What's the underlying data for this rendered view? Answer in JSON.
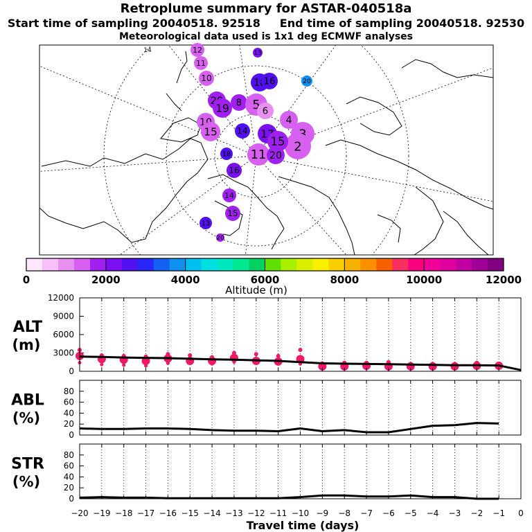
{
  "header": {
    "title": "Retroplume summary for ASTAR-040518a",
    "start_label": "Start time of sampling",
    "start_value": "20040518. 92518",
    "end_label": "End time of sampling",
    "end_value": "20040518. 92530",
    "met_line": "Meteorological data used is 1x1 deg ECMWF analyses"
  },
  "colorbar": {
    "label": "Altitude (m)",
    "ticks": [
      "0",
      "2000",
      "4000",
      "6000",
      "8000",
      "10000",
      "12000"
    ],
    "colors": [
      "#ffe8ff",
      "#f8c0f8",
      "#e890f0",
      "#d860f0",
      "#a020f0",
      "#7a10f0",
      "#5010f0",
      "#2828f8",
      "#1460f0",
      "#1090f0",
      "#00c0f0",
      "#00e0e0",
      "#00e8c0",
      "#00e890",
      "#00d060",
      "#60e000",
      "#a8f000",
      "#d8f000",
      "#f8f000",
      "#f8d000",
      "#f8b000",
      "#f89000",
      "#f86000",
      "#f83060",
      "#f80080",
      "#f00098",
      "#e000a0",
      "#c000a0",
      "#a00098",
      "#800080"
    ]
  },
  "map": {
    "clusters": [
      {
        "label": "14",
        "color": "#e890f0"
      },
      {
        "label": "12",
        "color": "#d860f0"
      },
      {
        "label": "13",
        "color": "#7a10f0"
      },
      {
        "label": "11",
        "color": "#d860f0"
      },
      {
        "label": "10",
        "color": "#d860f0"
      },
      {
        "label": "20",
        "color": "#1090f0"
      },
      {
        "label": "18",
        "color": "#5010f0"
      },
      {
        "label": "16",
        "color": "#5010f0"
      },
      {
        "label": "20",
        "color": "#a020f0"
      },
      {
        "label": "19",
        "color": "#a020f0"
      },
      {
        "label": "8",
        "color": "#a020f0"
      },
      {
        "label": "5",
        "color": "#d860f0"
      },
      {
        "label": "6",
        "color": "#e890f0"
      },
      {
        "label": "10",
        "color": "#d860f0"
      },
      {
        "label": "15",
        "color": "#d860f0"
      },
      {
        "label": "4",
        "color": "#d860f0"
      },
      {
        "label": "3",
        "color": "#d860f0"
      },
      {
        "label": "2",
        "color": "#d860f0"
      },
      {
        "label": "14",
        "color": "#5010f0"
      },
      {
        "label": "17",
        "color": "#7a10f0"
      },
      {
        "label": "15",
        "color": "#a020f0"
      },
      {
        "label": "11",
        "color": "#d860f0"
      },
      {
        "label": "20",
        "color": "#a020f0"
      },
      {
        "label": "18",
        "color": "#5010f0"
      },
      {
        "label": "16",
        "color": "#7a10f0"
      },
      {
        "label": "14",
        "color": "#a020f0"
      },
      {
        "label": "15",
        "color": "#a020f0"
      },
      {
        "label": "13",
        "color": "#5010f0"
      },
      {
        "label": "20",
        "color": "#a020f0"
      }
    ]
  },
  "chart_data": [
    {
      "type": "scatter",
      "panel": "ALT",
      "ylabel": "ALT\n(m)",
      "ylim": [
        0,
        12000
      ],
      "yticks": [
        0,
        3000,
        6000,
        9000,
        12000
      ],
      "x": [
        -20,
        -19,
        -18,
        -17,
        -16,
        -15,
        -14,
        -13,
        -12,
        -11,
        -10,
        -9,
        -8,
        -7,
        -6,
        -5,
        -4,
        -3,
        -2,
        -1,
        0
      ],
      "mean_altitude": [
        2400,
        2350,
        2250,
        2200,
        2150,
        2050,
        1950,
        1900,
        1800,
        1700,
        1500,
        1300,
        1250,
        1200,
        1150,
        1100,
        1050,
        1000,
        1000,
        950,
        200
      ],
      "cluster_points": [
        {
          "x": -20,
          "alts": [
            3500,
            2500,
            1400
          ]
        },
        {
          "x": -19,
          "alts": [
            2600,
            2000,
            1100
          ]
        },
        {
          "x": -18,
          "alts": [
            2500,
            1900,
            1000
          ]
        },
        {
          "x": -17,
          "alts": [
            2400,
            1700,
            900
          ]
        },
        {
          "x": -16,
          "alts": [
            2800,
            2100,
            1300
          ]
        },
        {
          "x": -15,
          "alts": [
            2600,
            1700,
            1300
          ]
        },
        {
          "x": -14,
          "alts": [
            2300,
            1700,
            1200
          ]
        },
        {
          "x": -13,
          "alts": [
            3000,
            2200,
            1500
          ]
        },
        {
          "x": -12,
          "alts": [
            2800,
            1700,
            1500
          ]
        },
        {
          "x": -11,
          "alts": [
            2500,
            1600,
            1300
          ]
        },
        {
          "x": -10,
          "alts": [
            3500,
            2000,
            1200
          ]
        },
        {
          "x": -9,
          "alts": [
            1300,
            800,
            400
          ]
        },
        {
          "x": -8,
          "alts": [
            1400,
            800,
            400
          ]
        },
        {
          "x": -7,
          "alts": [
            1400,
            900,
            500
          ]
        },
        {
          "x": -6,
          "alts": [
            1500,
            800,
            400
          ]
        },
        {
          "x": -5,
          "alts": [
            1200,
            800,
            400
          ]
        },
        {
          "x": -4,
          "alts": [
            1200,
            800,
            400
          ]
        },
        {
          "x": -3,
          "alts": [
            1200,
            800,
            400
          ]
        },
        {
          "x": -2,
          "alts": [
            1400,
            900,
            500
          ]
        },
        {
          "x": -1,
          "alts": [
            1200,
            900,
            600
          ]
        }
      ]
    },
    {
      "type": "line",
      "panel": "ABL",
      "ylabel": "ABL\n(%)",
      "ylim": [
        0,
        100
      ],
      "yticks": [
        0,
        20,
        40,
        60,
        80
      ],
      "x": [
        -20,
        -19,
        -18,
        -17,
        -16,
        -15,
        -14,
        -13,
        -12,
        -11,
        -10,
        -9,
        -8,
        -7,
        -6,
        -5,
        -4,
        -3,
        -2,
        -1
      ],
      "values": [
        12,
        11,
        11,
        12,
        12,
        11,
        9,
        8,
        8,
        7,
        12,
        7,
        9,
        5,
        5,
        11,
        17,
        18,
        22,
        21
      ]
    },
    {
      "type": "line",
      "panel": "STR",
      "ylabel": "STR\n(%)",
      "ylim": [
        0,
        100
      ],
      "yticks": [
        0,
        20,
        40,
        60,
        80
      ],
      "x": [
        -20,
        -19,
        -18,
        -17,
        -16,
        -15,
        -14,
        -13,
        -12,
        -11,
        -10,
        -9,
        -8,
        -7,
        -6,
        -5,
        -4,
        -3,
        -2,
        -1
      ],
      "values": [
        2,
        3,
        2,
        2,
        1,
        1,
        1,
        1,
        1,
        1,
        3,
        6,
        6,
        4,
        4,
        6,
        3,
        3,
        0,
        0
      ],
      "xlabel": "Travel time (days)",
      "xticks": [
        "−20",
        "−19",
        "−18",
        "−17",
        "−16",
        "−15",
        "−14",
        "−13",
        "−12",
        "−11",
        "−10",
        "−9",
        "−8",
        "−7",
        "−6",
        "−5",
        "−4",
        "−3",
        "−2",
        "−1",
        "0"
      ]
    }
  ]
}
